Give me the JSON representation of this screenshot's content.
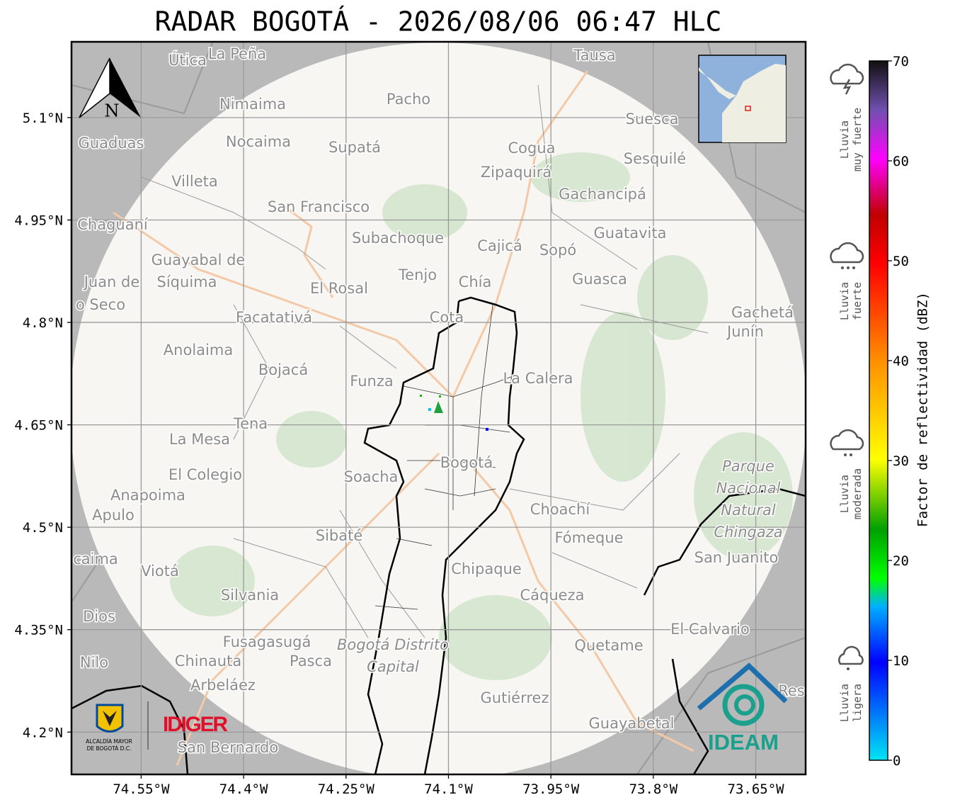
{
  "title": "RADAR BOGOTÁ - 2026/08/06 06:47 HLC",
  "map": {
    "xlim": [
      -74.652,
      -73.577
    ],
    "ylim": [
      4.138,
      5.211
    ],
    "xticks": [
      {
        "value": -74.55,
        "label": "74.55°W"
      },
      {
        "value": -74.4,
        "label": "74.4°W"
      },
      {
        "value": -74.25,
        "label": "74.25°W"
      },
      {
        "value": -74.1,
        "label": "74.1°W"
      },
      {
        "value": -73.95,
        "label": "73.95°W"
      },
      {
        "value": -73.8,
        "label": "73.8°W"
      },
      {
        "value": -73.65,
        "label": "73.65°W"
      }
    ],
    "yticks": [
      {
        "value": 5.1,
        "label": "5.1°N"
      },
      {
        "value": 4.95,
        "label": "4.95°N"
      },
      {
        "value": 4.8,
        "label": "4.8°N"
      },
      {
        "value": 4.65,
        "label": "4.65°N"
      },
      {
        "value": 4.5,
        "label": "4.5°N"
      },
      {
        "value": 4.35,
        "label": "4.35°N"
      },
      {
        "value": 4.2,
        "label": "4.2°N"
      }
    ],
    "grid": true
  },
  "north": "N",
  "places": [
    "Útica",
    "La Peña",
    "Tausa",
    "Pacho",
    "Nimaima",
    "Guaduas",
    "Nocaima",
    "Supatá",
    "Cogua",
    "Suesca",
    "Sesquilé",
    "Zipaquirá",
    "Villeta",
    "Gachancipá",
    "San Francisco",
    "Chaguaní",
    "Guatavita",
    "Subachoque",
    "Cajicá",
    "Sopó",
    "Guayabal de",
    "Síquima",
    "Juan de",
    "Tenjo",
    "Chía",
    "Guasca",
    "El Rosal",
    "o Seco",
    "Facatativá",
    "Cota",
    "Gachetá",
    "Junín",
    "Anolaima",
    "Bojacá",
    "Funza",
    "La Calera",
    "Tena",
    "La Mesa",
    "Bogotá",
    [
      "Parque",
      "Nacional",
      "Natural",
      "Chingaza"
    ],
    "Soacha",
    "El Colegio",
    "Anapoima",
    "Apulo",
    "Choachí",
    "Sibaté",
    "Fómeque",
    "San Juanito",
    "caima",
    "Viotá",
    "Chipaque",
    "Silvania",
    "Cáqueza",
    "Dios",
    "El Calvario",
    "Fusagasugá",
    [
      "Bogotá Distrito",
      "Capital"
    ],
    "Quetame",
    "Nilo",
    "Chinauta",
    "Pasca",
    "Arbeláez",
    "Gutiérrez",
    "Res",
    "Guayabetal",
    "San Bernardo"
  ],
  "colorbar": {
    "label": "Factor de reflectividad (dBZ)",
    "lim": [
      0,
      70
    ],
    "ticks": [
      0,
      10,
      20,
      30,
      40,
      50,
      60,
      70
    ]
  },
  "rain_classes": [
    [
      "Lluvia",
      "muy fuerte"
    ],
    [
      "Lluvia",
      "fuerte"
    ],
    [
      "Lluvia",
      "moderada"
    ],
    [
      "Lluvia",
      "ligera"
    ]
  ],
  "logos": {
    "bogota": [
      "ALCALDÍA MAYOR",
      "DE BOGOTÁ D.C."
    ],
    "idiger": "IDIGER",
    "ideam": "IDEAM"
  }
}
